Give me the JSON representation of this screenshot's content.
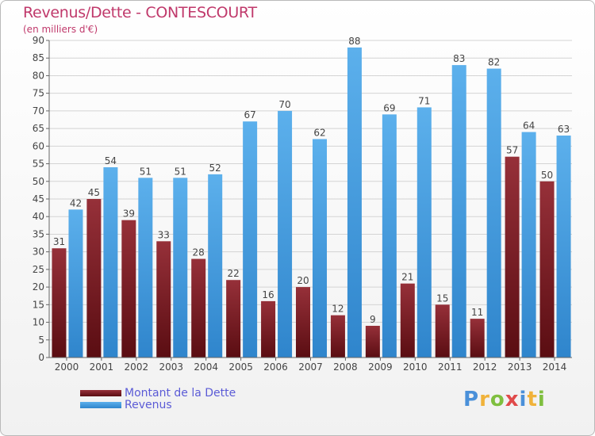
{
  "title": "Revenus/Dette - CONTESCOURT",
  "subtitle": "(en milliers d'€)",
  "legend": {
    "debt_label": "Montant de la Dette",
    "revenue_label": "Revenus"
  },
  "logo": {
    "text": "Proxiti",
    "letters": [
      "P",
      "r",
      "o",
      "x",
      "i",
      "t",
      "i"
    ]
  },
  "colors": {
    "debt": "#7a1f24",
    "revenue": "#3f9be0",
    "title": "#c0396b",
    "legend_text": "#5b5bd6"
  },
  "chart_data": {
    "type": "bar",
    "title": "Revenus/Dette - CONTESCOURT",
    "subtitle": "(en milliers d'€)",
    "categories": [
      "2000",
      "2001",
      "2002",
      "2003",
      "2004",
      "2005",
      "2006",
      "2007",
      "2008",
      "2009",
      "2010",
      "2011",
      "2012",
      "2013",
      "2014"
    ],
    "series": [
      {
        "name": "Montant de la Dette",
        "values": [
          31,
          45,
          39,
          33,
          28,
          22,
          16,
          20,
          12,
          9,
          21,
          15,
          11,
          57,
          50
        ]
      },
      {
        "name": "Revenus",
        "values": [
          42,
          54,
          51,
          51,
          52,
          67,
          70,
          62,
          88,
          69,
          71,
          83,
          82,
          64,
          63
        ]
      }
    ],
    "ylim": [
      0,
      90
    ],
    "yticks": [
      0,
      5,
      10,
      15,
      20,
      25,
      30,
      35,
      40,
      45,
      50,
      55,
      60,
      65,
      70,
      75,
      80,
      85,
      90
    ],
    "grid": true,
    "legend_position": "bottom-left",
    "data_labels": true
  }
}
